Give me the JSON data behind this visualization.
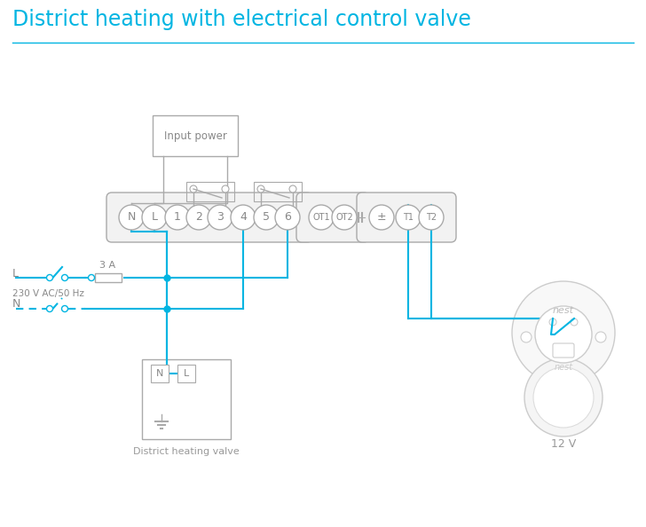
{
  "title": "District heating with electrical control valve",
  "title_color": "#00b5e2",
  "title_fontsize": 17,
  "bg_color": "#ffffff",
  "wire_color": "#00b5e2",
  "box_color": "#aaaaaa",
  "text_color": "#888888",
  "label_color": "#999999",
  "input_power_label": "Input power",
  "district_valve_label": "District heating valve",
  "nest_label": "nest",
  "twelve_v_label": "12 V",
  "three_a_label": "3 A",
  "voltage_label": "230 V AC/50 Hz",
  "l_label": "L",
  "n_label": "N",
  "terminal_labels": [
    "N",
    "L",
    "1",
    "2",
    "3",
    "4",
    "5",
    "6"
  ],
  "ot_labels": [
    "OT1",
    "OT2"
  ],
  "t_labels": [
    "±",
    "T1",
    "T2"
  ]
}
